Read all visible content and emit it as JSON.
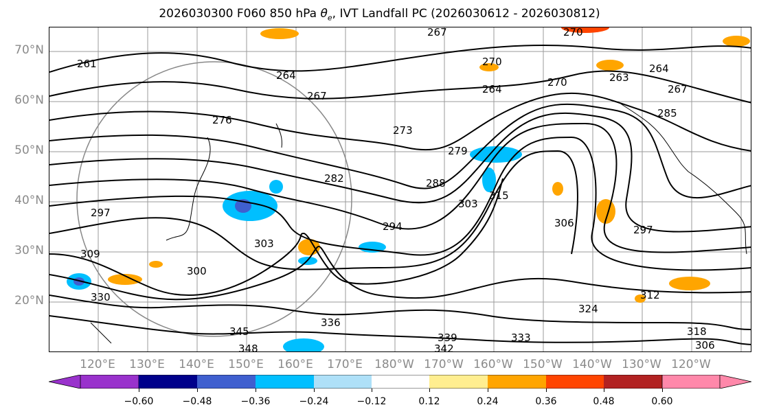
{
  "title": {
    "prefix": "2026030300 F060 850 hPa ",
    "theta_symbol": "θ",
    "theta_sub": "e",
    "suffix": ", IVT Landfall PC (2026030612 - 2026030812)"
  },
  "map": {
    "lat_labels": [
      "70°N",
      "60°N",
      "50°N",
      "40°N",
      "30°N",
      "20°N"
    ],
    "lon_labels": [
      "120°E",
      "130°E",
      "140°E",
      "150°E",
      "160°E",
      "170°E",
      "180°W",
      "170°W",
      "160°W",
      "150°W",
      "140°W",
      "130°W",
      "120°W"
    ],
    "contour_labels": [
      "261",
      "264",
      "267",
      "267",
      "270",
      "270",
      "264",
      "264",
      "263",
      "267",
      "276",
      "273",
      "279",
      "270",
      "285",
      "282",
      "288",
      "303",
      "315",
      "306",
      "297",
      "294",
      "297",
      "303",
      "309",
      "300",
      "312",
      "330",
      "324",
      "336",
      "339",
      "333",
      "345",
      "348",
      "342",
      "318",
      "306"
    ]
  },
  "colorbar": {
    "ticks": [
      "−0.60",
      "−0.48",
      "−0.36",
      "−0.24",
      "−0.12",
      "0.12",
      "0.24",
      "0.36",
      "0.48",
      "0.60"
    ],
    "colors": [
      "#9932cc",
      "#00008b",
      "#3f5fcf",
      "#00bfff",
      "#aee0f8",
      "#ffffff",
      "#ffee90",
      "#ffa500",
      "#ff4500",
      "#b22222",
      "#ff88aa",
      "#ff88aa"
    ]
  }
}
